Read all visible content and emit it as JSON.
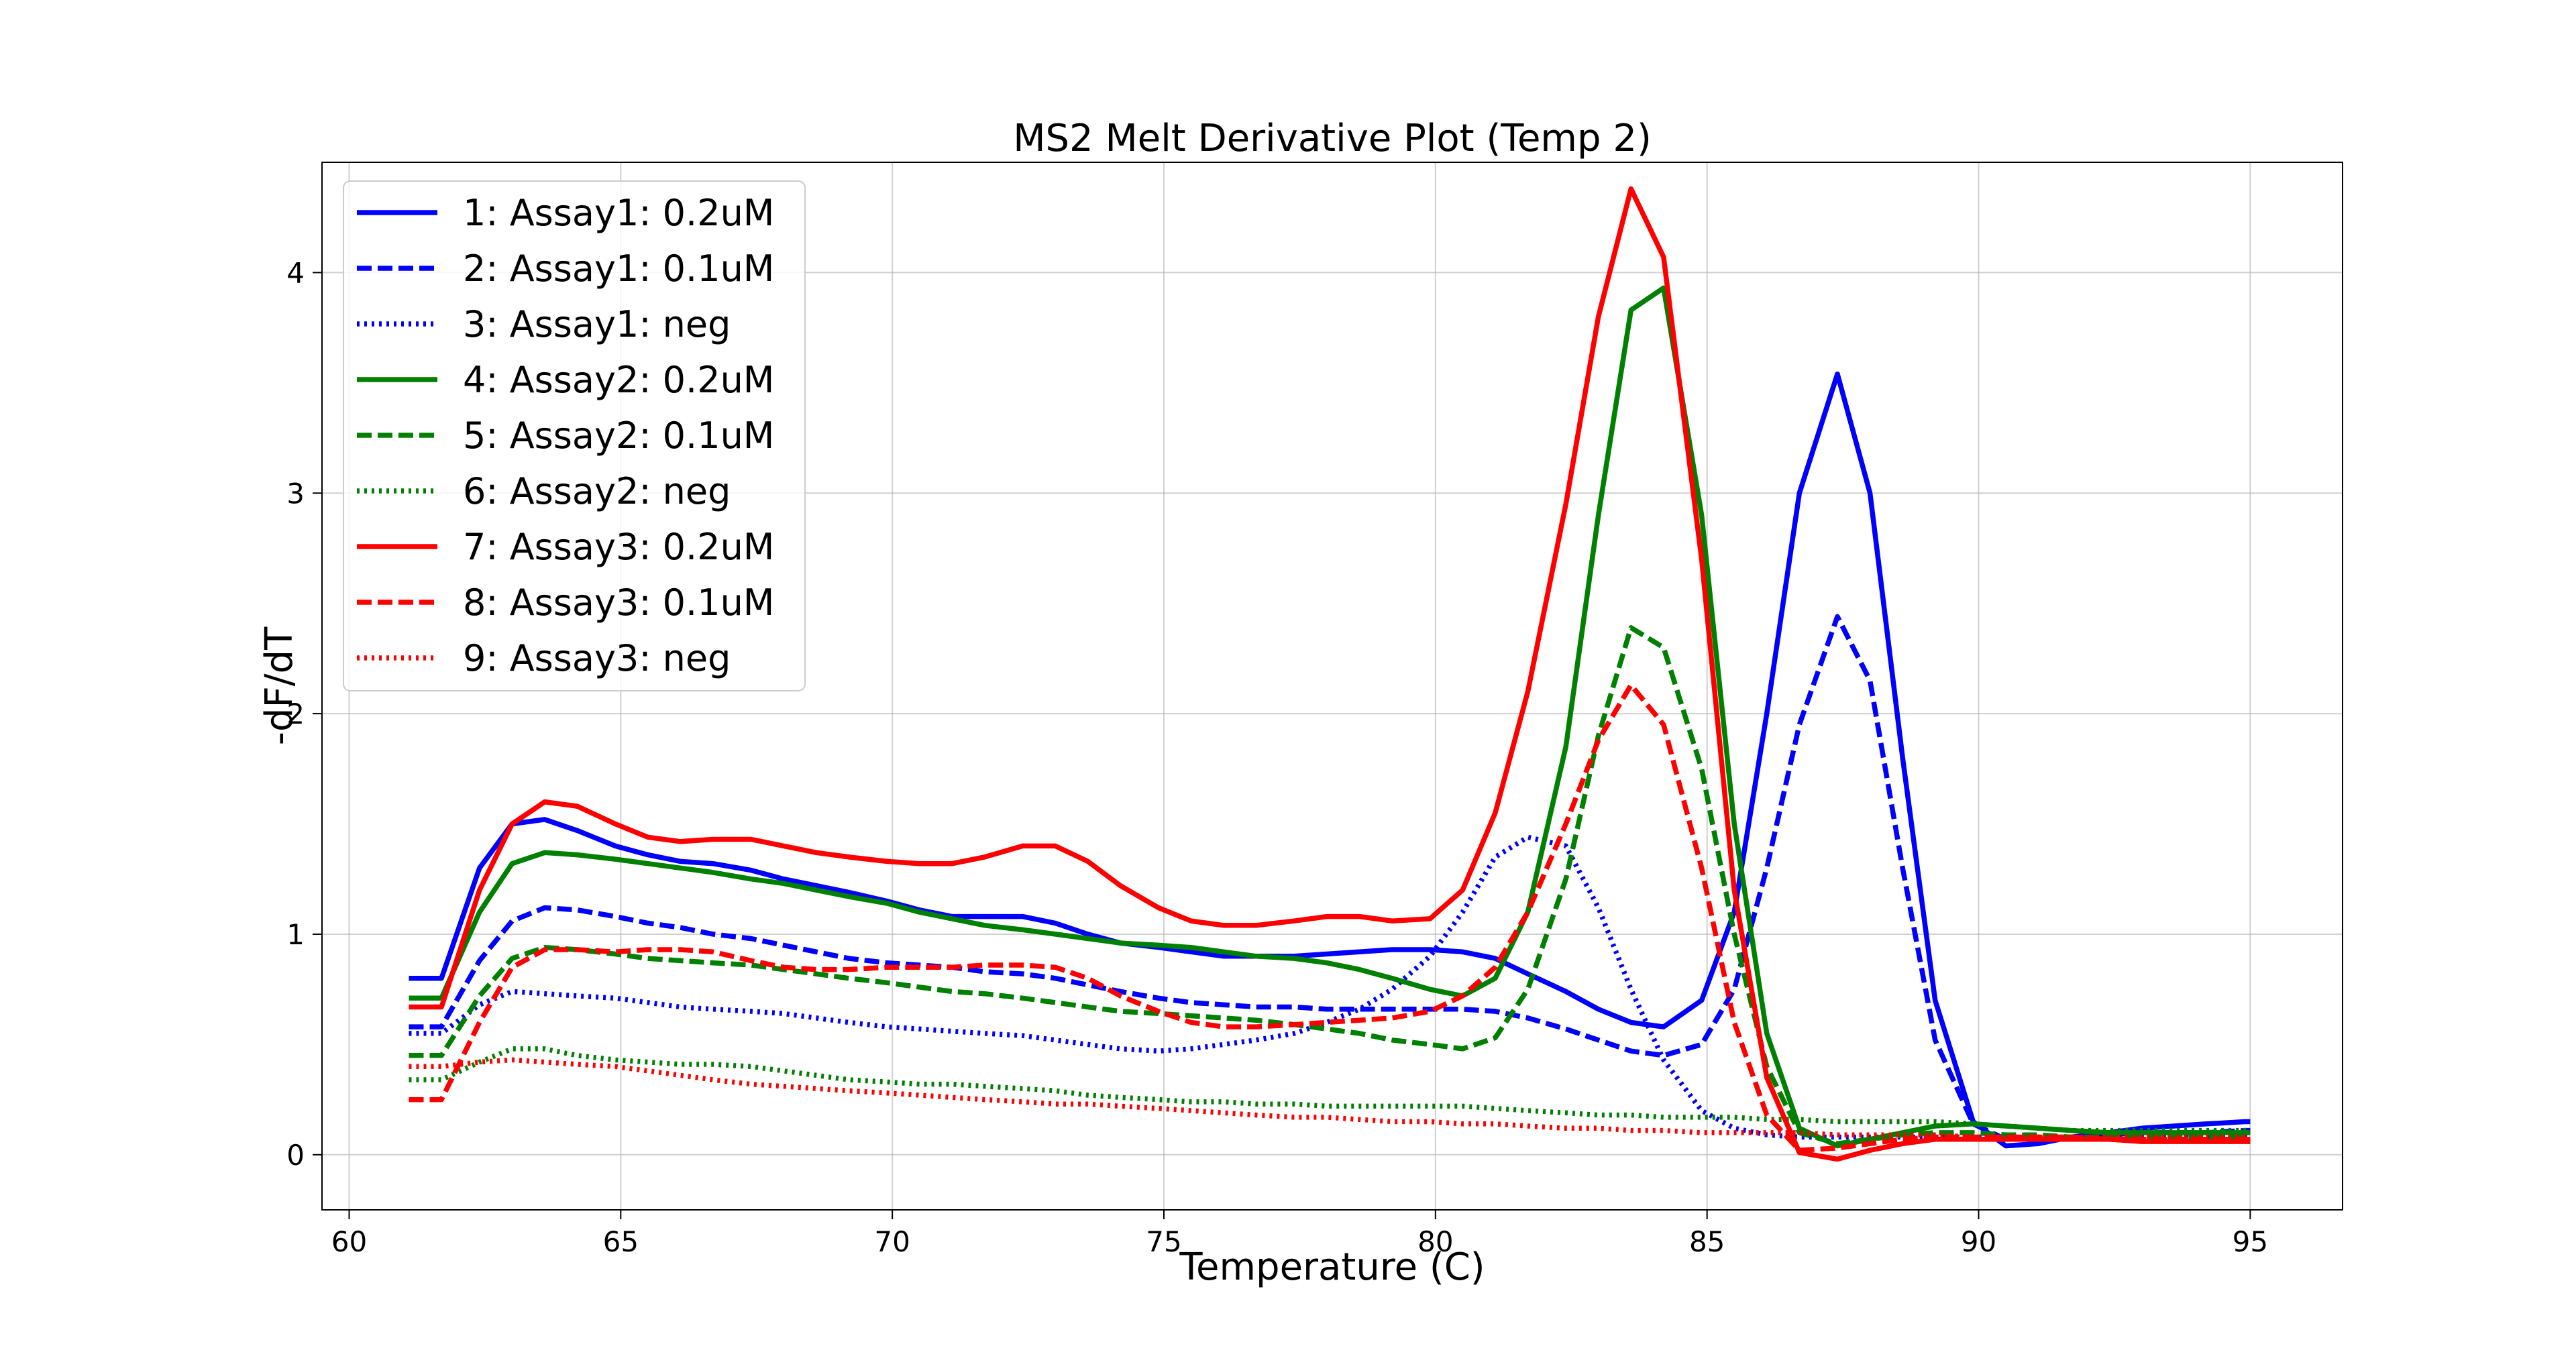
{
  "chart_data": {
    "type": "line",
    "title": "MS2 Melt Derivative Plot (Temp 2)",
    "xlabel": "Temperature (C)",
    "ylabel": "-dF/dT",
    "xlim": [
      59.5,
      96.7
    ],
    "ylim": [
      -0.25,
      4.5
    ],
    "xticks": [
      60,
      65,
      70,
      75,
      80,
      85,
      90,
      95
    ],
    "yticks": [
      0,
      1,
      2,
      3,
      4
    ],
    "grid": true,
    "legend_position": "upper-left",
    "x": [
      61.1,
      61.7,
      62.4,
      63.0,
      63.6,
      64.2,
      64.9,
      65.5,
      66.1,
      66.7,
      67.4,
      68.0,
      68.6,
      69.2,
      69.9,
      70.5,
      71.1,
      71.7,
      72.4,
      73.0,
      73.6,
      74.2,
      74.9,
      75.5,
      76.1,
      76.7,
      77.4,
      78.0,
      78.6,
      79.2,
      79.9,
      80.5,
      81.1,
      81.7,
      82.4,
      83.0,
      83.6,
      84.2,
      84.9,
      85.5,
      86.1,
      86.7,
      87.4,
      88.0,
      88.6,
      89.2,
      89.9,
      90.5,
      91.1,
      91.7,
      92.4,
      93.0,
      93.6,
      94.2,
      94.9,
      95.0
    ],
    "series": [
      {
        "name": "1: Assay1: 0.2uM",
        "color": "#0000ff",
        "style": "solid",
        "values": [
          0.8,
          0.8,
          1.3,
          1.5,
          1.52,
          1.47,
          1.4,
          1.36,
          1.33,
          1.32,
          1.29,
          1.25,
          1.22,
          1.19,
          1.15,
          1.11,
          1.08,
          1.08,
          1.08,
          1.05,
          1.0,
          0.96,
          0.94,
          0.92,
          0.9,
          0.9,
          0.9,
          0.91,
          0.92,
          0.93,
          0.93,
          0.92,
          0.89,
          0.82,
          0.74,
          0.66,
          0.6,
          0.58,
          0.7,
          1.1,
          2.0,
          3.0,
          3.54,
          3.0,
          1.8,
          0.7,
          0.15,
          0.04,
          0.05,
          0.08,
          0.1,
          0.12,
          0.13,
          0.14,
          0.15,
          0.15
        ]
      },
      {
        "name": "2: Assay1: 0.1uM",
        "color": "#0000ff",
        "style": "dashed",
        "values": [
          0.58,
          0.58,
          0.88,
          1.06,
          1.12,
          1.11,
          1.08,
          1.05,
          1.03,
          1.0,
          0.98,
          0.95,
          0.92,
          0.89,
          0.87,
          0.86,
          0.85,
          0.83,
          0.82,
          0.8,
          0.77,
          0.74,
          0.71,
          0.69,
          0.68,
          0.67,
          0.67,
          0.66,
          0.66,
          0.66,
          0.66,
          0.66,
          0.65,
          0.62,
          0.57,
          0.52,
          0.47,
          0.45,
          0.5,
          0.75,
          1.3,
          1.95,
          2.44,
          2.15,
          1.3,
          0.52,
          0.14,
          0.07,
          0.07,
          0.08,
          0.09,
          0.1,
          0.1,
          0.1,
          0.11,
          0.11
        ]
      },
      {
        "name": "3: Assay1: neg",
        "color": "#0000ff",
        "style": "dotted",
        "values": [
          0.55,
          0.55,
          0.68,
          0.74,
          0.73,
          0.72,
          0.71,
          0.69,
          0.67,
          0.66,
          0.65,
          0.64,
          0.62,
          0.6,
          0.58,
          0.57,
          0.56,
          0.55,
          0.54,
          0.52,
          0.5,
          0.48,
          0.47,
          0.48,
          0.5,
          0.52,
          0.55,
          0.6,
          0.66,
          0.75,
          0.9,
          1.1,
          1.35,
          1.44,
          1.4,
          1.12,
          0.75,
          0.43,
          0.2,
          0.12,
          0.09,
          0.08,
          0.08,
          0.08,
          0.08,
          0.08,
          0.08,
          0.08,
          0.08,
          0.08,
          0.08,
          0.08,
          0.08,
          0.08,
          0.08,
          0.08
        ]
      },
      {
        "name": "4: Assay2: 0.2uM",
        "color": "#008000",
        "style": "solid",
        "values": [
          0.71,
          0.71,
          1.1,
          1.32,
          1.37,
          1.36,
          1.34,
          1.32,
          1.3,
          1.28,
          1.25,
          1.23,
          1.2,
          1.17,
          1.14,
          1.1,
          1.07,
          1.04,
          1.02,
          1.0,
          0.98,
          0.96,
          0.95,
          0.94,
          0.92,
          0.9,
          0.89,
          0.87,
          0.84,
          0.8,
          0.75,
          0.72,
          0.8,
          1.1,
          1.85,
          2.9,
          3.83,
          3.93,
          2.9,
          1.5,
          0.55,
          0.12,
          0.04,
          0.07,
          0.1,
          0.13,
          0.14,
          0.13,
          0.12,
          0.11,
          0.1,
          0.1,
          0.1,
          0.1,
          0.1,
          0.1
        ]
      },
      {
        "name": "5: Assay2: 0.1uM",
        "color": "#008000",
        "style": "dashed",
        "values": [
          0.45,
          0.45,
          0.72,
          0.89,
          0.94,
          0.93,
          0.91,
          0.89,
          0.88,
          0.87,
          0.86,
          0.84,
          0.82,
          0.8,
          0.78,
          0.76,
          0.74,
          0.73,
          0.71,
          0.69,
          0.67,
          0.65,
          0.64,
          0.63,
          0.62,
          0.61,
          0.59,
          0.57,
          0.55,
          0.52,
          0.5,
          0.48,
          0.53,
          0.75,
          1.25,
          1.9,
          2.39,
          2.3,
          1.75,
          1.0,
          0.4,
          0.1,
          0.05,
          0.07,
          0.09,
          0.1,
          0.1,
          0.09,
          0.09,
          0.08,
          0.08,
          0.08,
          0.08,
          0.08,
          0.08,
          0.08
        ]
      },
      {
        "name": "6: Assay2: neg",
        "color": "#008000",
        "style": "dotted",
        "values": [
          0.34,
          0.34,
          0.42,
          0.48,
          0.48,
          0.45,
          0.43,
          0.42,
          0.41,
          0.41,
          0.4,
          0.38,
          0.36,
          0.34,
          0.33,
          0.32,
          0.32,
          0.31,
          0.3,
          0.29,
          0.27,
          0.26,
          0.25,
          0.24,
          0.24,
          0.23,
          0.23,
          0.22,
          0.22,
          0.22,
          0.22,
          0.22,
          0.21,
          0.2,
          0.19,
          0.18,
          0.18,
          0.17,
          0.17,
          0.17,
          0.16,
          0.16,
          0.15,
          0.15,
          0.15,
          0.15,
          0.14,
          0.13,
          0.12,
          0.11,
          0.11,
          0.11,
          0.11,
          0.11,
          0.11,
          0.11
        ]
      },
      {
        "name": "7: Assay3: 0.2uM",
        "color": "#ff0000",
        "style": "solid",
        "values": [
          0.67,
          0.67,
          1.2,
          1.5,
          1.6,
          1.58,
          1.5,
          1.44,
          1.42,
          1.43,
          1.43,
          1.4,
          1.37,
          1.35,
          1.33,
          1.32,
          1.32,
          1.35,
          1.4,
          1.4,
          1.33,
          1.22,
          1.12,
          1.06,
          1.04,
          1.04,
          1.06,
          1.08,
          1.08,
          1.06,
          1.07,
          1.2,
          1.55,
          2.1,
          2.95,
          3.8,
          4.38,
          4.07,
          2.7,
          1.2,
          0.35,
          0.01,
          -0.02,
          0.02,
          0.05,
          0.07,
          0.07,
          0.07,
          0.07,
          0.07,
          0.07,
          0.06,
          0.06,
          0.06,
          0.06,
          0.06
        ]
      },
      {
        "name": "8: Assay3: 0.1uM",
        "color": "#ff0000",
        "style": "dashed",
        "values": [
          0.25,
          0.25,
          0.6,
          0.85,
          0.93,
          0.93,
          0.92,
          0.93,
          0.93,
          0.92,
          0.88,
          0.85,
          0.84,
          0.84,
          0.85,
          0.85,
          0.85,
          0.86,
          0.86,
          0.85,
          0.8,
          0.72,
          0.65,
          0.6,
          0.58,
          0.58,
          0.59,
          0.6,
          0.61,
          0.62,
          0.65,
          0.72,
          0.85,
          1.1,
          1.5,
          1.88,
          2.13,
          1.95,
          1.3,
          0.6,
          0.18,
          0.02,
          0.03,
          0.05,
          0.07,
          0.08,
          0.08,
          0.08,
          0.08,
          0.08,
          0.07,
          0.07,
          0.07,
          0.07,
          0.07,
          0.07
        ]
      },
      {
        "name": "9: Assay3: neg",
        "color": "#ff0000",
        "style": "dotted",
        "values": [
          0.4,
          0.4,
          0.42,
          0.43,
          0.42,
          0.41,
          0.4,
          0.38,
          0.36,
          0.34,
          0.32,
          0.31,
          0.3,
          0.29,
          0.28,
          0.27,
          0.26,
          0.25,
          0.24,
          0.23,
          0.23,
          0.22,
          0.21,
          0.2,
          0.19,
          0.18,
          0.17,
          0.17,
          0.16,
          0.15,
          0.15,
          0.14,
          0.14,
          0.13,
          0.12,
          0.12,
          0.11,
          0.11,
          0.1,
          0.1,
          0.1,
          0.1,
          0.09,
          0.09,
          0.09,
          0.09,
          0.08,
          0.08,
          0.08,
          0.08,
          0.08,
          0.08,
          0.08,
          0.08,
          0.08,
          0.08
        ]
      }
    ]
  }
}
